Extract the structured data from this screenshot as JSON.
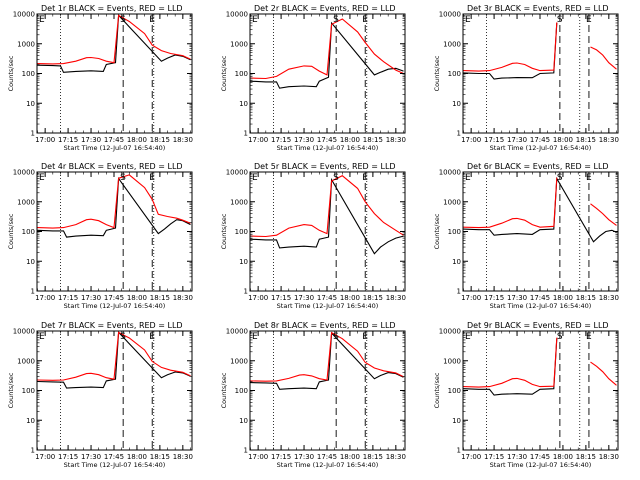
{
  "chart_data": [
    {
      "type": "line",
      "title": "Det 1r BLACK = Events, RED = LLD",
      "xlabel": "Start Time (12-Jul-07 16:54:40)",
      "ylabel": "Counts/sec",
      "yscale": "log",
      "ylim": [
        1,
        10000
      ],
      "xlim": [
        "16:54:40",
        "18:36:00"
      ],
      "x_ticks": [
        "17:00",
        "17:15",
        "17:30",
        "17:45",
        "18:00",
        "18:15",
        "18:30"
      ],
      "y_ticks": [
        "1",
        "10",
        "100",
        "1000",
        "10000"
      ],
      "markers": [
        {
          "label": "S",
          "x": "17:51"
        },
        {
          "label": "E",
          "x": "18:10"
        }
      ],
      "series": [
        {
          "color": "#000000",
          "x": [
            "16:55",
            "17:05",
            "17:10",
            "17:12",
            "17:20",
            "17:30",
            "17:38",
            "17:40",
            "17:46",
            "17:48",
            "18:16",
            "18:20",
            "18:25",
            "18:30",
            "18:35"
          ],
          "y": [
            190,
            185,
            180,
            110,
            118,
            123,
            118,
            200,
            230,
            9000,
            260,
            330,
            420,
            380,
            290
          ]
        },
        {
          "color": "#ff0000",
          "x": [
            "16:55",
            "17:05",
            "17:12",
            "17:20",
            "17:27",
            "17:30",
            "17:35",
            "17:40",
            "17:45",
            "17:48",
            "17:55",
            "18:05",
            "18:10",
            "18:16",
            "18:22",
            "18:30",
            "18:35"
          ],
          "y": [
            215,
            210,
            215,
            260,
            340,
            345,
            320,
            260,
            230,
            9000,
            5600,
            2200,
            900,
            590,
            470,
            400,
            300
          ]
        }
      ]
    },
    {
      "type": "line",
      "title": "Det 2r BLACK = Events, RED = LLD",
      "xlabel": "Start Time (12-Jul-07 16:54:40)",
      "ylabel": "Counts/sec",
      "yscale": "log",
      "ylim": [
        1,
        10000
      ],
      "xlim": [
        "16:54:40",
        "18:36:00"
      ],
      "x_ticks": [
        "17:00",
        "17:15",
        "17:30",
        "17:45",
        "18:00",
        "18:15",
        "18:30"
      ],
      "y_ticks": [
        "1",
        "10",
        "100",
        "1000",
        "10000"
      ],
      "markers": [
        {
          "label": "S",
          "x": "17:51"
        },
        {
          "label": "E",
          "x": "18:10"
        }
      ],
      "series": [
        {
          "color": "#000000",
          "x": [
            "16:55",
            "17:05",
            "17:12",
            "17:14",
            "17:20",
            "17:30",
            "17:38",
            "17:40",
            "17:46",
            "17:48",
            "18:16",
            "18:20",
            "18:25",
            "18:30",
            "18:35"
          ],
          "y": [
            55,
            52,
            52,
            32,
            36,
            38,
            36,
            55,
            75,
            5000,
            90,
            110,
            140,
            150,
            120
          ]
        },
        {
          "color": "#ff0000",
          "x": [
            "16:55",
            "17:05",
            "17:12",
            "17:20",
            "17:30",
            "17:35",
            "17:40",
            "17:45",
            "17:48",
            "17:55",
            "18:05",
            "18:10",
            "18:16",
            "18:22",
            "18:30",
            "18:35"
          ],
          "y": [
            70,
            68,
            80,
            140,
            180,
            175,
            120,
            90,
            4500,
            6800,
            2500,
            1100,
            450,
            250,
            130,
            100
          ]
        }
      ]
    },
    {
      "type": "line",
      "title": "Det 3r BLACK = Events, RED = LLD",
      "xlabel": "Start Time (12-Jul-07 16:54:40)",
      "ylabel": "Counts/sec",
      "yscale": "log",
      "ylim": [
        1,
        10000
      ],
      "xlim": [
        "16:54:40",
        "18:36:00"
      ],
      "x_ticks": [
        "17:00",
        "17:15",
        "17:30",
        "17:45",
        "18:00",
        "18:15",
        "18:30"
      ],
      "y_ticks": [
        "1",
        "10",
        "100",
        "1000",
        "10000"
      ],
      "markers": [
        {
          "label": "S",
          "x": "17:58"
        },
        {
          "label": "E",
          "x": "18:17"
        }
      ],
      "series": [
        {
          "color": "#000000",
          "x": [
            "16:55",
            "17:05",
            "17:12",
            "17:15",
            "17:20",
            "17:30",
            "17:40",
            "17:45",
            "17:54",
            "17:56"
          ],
          "y": [
            105,
            100,
            100,
            65,
            70,
            73,
            72,
            100,
            105,
            5000
          ]
        },
        {
          "color": "#ff0000",
          "x": [
            "16:55",
            "17:05",
            "17:12",
            "17:20",
            "17:27",
            "17:30",
            "17:35",
            "17:40",
            "17:45",
            "17:54",
            "17:56"
          ],
          "y": [
            125,
            120,
            125,
            160,
            220,
            225,
            200,
            150,
            125,
            130,
            5200
          ]
        },
        {
          "color": "#ff0000",
          "x": [
            "18:18",
            "18:22",
            "18:26",
            "18:30",
            "18:35"
          ],
          "y": [
            780,
            620,
            420,
            230,
            140
          ]
        }
      ]
    },
    {
      "type": "line",
      "title": "Det 4r BLACK = Events, RED = LLD",
      "xlabel": "Start Time (12-Jul-07 16:54:40)",
      "ylabel": "Counts/sec",
      "yscale": "log",
      "ylim": [
        1,
        10000
      ],
      "xlim": [
        "16:54:40",
        "18:36:00"
      ],
      "x_ticks": [
        "17:00",
        "17:15",
        "17:30",
        "17:45",
        "18:00",
        "18:15",
        "18:30"
      ],
      "y_ticks": [
        "1",
        "10",
        "100",
        "1000",
        "10000"
      ],
      "markers": [
        {
          "label": "S",
          "x": "17:51"
        },
        {
          "label": "E",
          "x": "18:10"
        }
      ],
      "series": [
        {
          "color": "#000000",
          "x": [
            "16:55",
            "17:05",
            "17:12",
            "17:14",
            "17:20",
            "17:30",
            "17:38",
            "17:40",
            "17:46",
            "17:48",
            "18:14",
            "18:18",
            "18:22",
            "18:26",
            "18:30",
            "18:35"
          ],
          "y": [
            110,
            105,
            105,
            65,
            70,
            75,
            72,
            110,
            130,
            6000,
            85,
            120,
            180,
            250,
            230,
            170
          ]
        },
        {
          "color": "#ff0000",
          "x": [
            "16:55",
            "17:05",
            "17:12",
            "17:20",
            "17:27",
            "17:30",
            "17:35",
            "17:40",
            "17:45",
            "17:48",
            "17:55",
            "18:05",
            "18:10",
            "18:14",
            "18:20",
            "18:26",
            "18:30",
            "18:35"
          ],
          "y": [
            135,
            130,
            135,
            170,
            250,
            260,
            230,
            170,
            135,
            6200,
            8000,
            3000,
            1200,
            380,
            320,
            280,
            240,
            190
          ]
        }
      ]
    },
    {
      "type": "line",
      "title": "Det 5r BLACK = Events, RED = LLD",
      "xlabel": "Start Time (12-Jul-07 16:54:40)",
      "ylabel": "Counts/sec",
      "yscale": "log",
      "ylim": [
        1,
        10000
      ],
      "xlim": [
        "16:54:40",
        "18:36:00"
      ],
      "x_ticks": [
        "17:00",
        "17:15",
        "17:30",
        "17:45",
        "18:00",
        "18:15",
        "18:30"
      ],
      "y_ticks": [
        "1",
        "10",
        "100",
        "1000",
        "10000"
      ],
      "markers": [
        {
          "label": "S",
          "x": "17:51"
        },
        {
          "label": "E",
          "x": "18:10"
        }
      ],
      "series": [
        {
          "color": "#000000",
          "x": [
            "16:55",
            "17:05",
            "17:12",
            "17:14",
            "17:20",
            "17:30",
            "17:38",
            "17:40",
            "17:46",
            "17:48",
            "18:16",
            "18:20",
            "18:25",
            "18:30",
            "18:35"
          ],
          "y": [
            55,
            52,
            52,
            28,
            30,
            32,
            30,
            55,
            65,
            5500,
            18,
            30,
            45,
            60,
            70
          ]
        },
        {
          "color": "#ff0000",
          "x": [
            "16:55",
            "17:05",
            "17:12",
            "17:20",
            "17:30",
            "17:35",
            "17:40",
            "17:45",
            "17:48",
            "17:55",
            "18:05",
            "18:10",
            "18:16",
            "18:22",
            "18:30",
            "18:35"
          ],
          "y": [
            70,
            68,
            75,
            130,
            170,
            160,
            110,
            85,
            5000,
            7500,
            2800,
            1000,
            400,
            200,
            110,
            75
          ]
        }
      ]
    },
    {
      "type": "line",
      "title": "Det 6r BLACK = Events, RED = LLD",
      "xlabel": "Start Time (12-Jul-07 16:54:40)",
      "ylabel": "Counts/sec",
      "yscale": "log",
      "ylim": [
        1,
        10000
      ],
      "xlim": [
        "16:54:40",
        "18:36:00"
      ],
      "x_ticks": [
        "17:00",
        "17:15",
        "17:30",
        "17:45",
        "18:00",
        "18:15",
        "18:30"
      ],
      "y_ticks": [
        "1",
        "10",
        "100",
        "1000",
        "10000"
      ],
      "markers": [
        {
          "label": "S",
          "x": "17:58"
        },
        {
          "label": "E",
          "x": "18:17"
        }
      ],
      "series": [
        {
          "color": "#000000",
          "x": [
            "16:55",
            "17:05",
            "17:12",
            "17:15",
            "17:20",
            "17:30",
            "17:40",
            "17:45",
            "17:54",
            "17:56",
            "18:20",
            "18:24",
            "18:28",
            "18:32",
            "18:35"
          ],
          "y": [
            120,
            115,
            115,
            75,
            80,
            85,
            80,
            115,
            120,
            6000,
            45,
            70,
            100,
            110,
            95
          ]
        },
        {
          "color": "#ff0000",
          "x": [
            "16:55",
            "17:05",
            "17:12",
            "17:20",
            "17:27",
            "17:30",
            "17:35",
            "17:40",
            "17:45",
            "17:54",
            "17:56"
          ],
          "y": [
            140,
            135,
            140,
            190,
            270,
            275,
            240,
            170,
            140,
            150,
            6500
          ]
        },
        {
          "color": "#ff0000",
          "x": [
            "18:18",
            "18:22",
            "18:26",
            "18:30",
            "18:35"
          ],
          "y": [
            850,
            600,
            400,
            250,
            160
          ]
        }
      ]
    },
    {
      "type": "line",
      "title": "Det 7r BLACK = Events, RED = LLD",
      "xlabel": "Start Time (12-Jul-07 16:54:40)",
      "ylabel": "Counts/sec",
      "yscale": "log",
      "ylim": [
        1,
        10000
      ],
      "xlim": [
        "16:54:40",
        "18:36:00"
      ],
      "x_ticks": [
        "17:00",
        "17:15",
        "17:30",
        "17:45",
        "18:00",
        "18:15",
        "18:30"
      ],
      "y_ticks": [
        "1",
        "10",
        "100",
        "1000",
        "10000"
      ],
      "markers": [
        {
          "label": "S",
          "x": "17:51"
        },
        {
          "label": "E",
          "x": "18:10"
        }
      ],
      "series": [
        {
          "color": "#000000",
          "x": [
            "16:55",
            "17:05",
            "17:12",
            "17:14",
            "17:20",
            "17:30",
            "17:38",
            "17:40",
            "17:46",
            "17:48",
            "18:16",
            "18:20",
            "18:25",
            "18:30",
            "18:35"
          ],
          "y": [
            200,
            195,
            190,
            120,
            125,
            130,
            125,
            210,
            240,
            9000,
            270,
            340,
            420,
            390,
            300
          ]
        },
        {
          "color": "#ff0000",
          "x": [
            "16:55",
            "17:05",
            "17:12",
            "17:20",
            "17:27",
            "17:30",
            "17:35",
            "17:40",
            "17:45",
            "17:48",
            "17:55",
            "18:05",
            "18:10",
            "18:16",
            "18:22",
            "18:30",
            "18:35"
          ],
          "y": [
            225,
            220,
            225,
            280,
            370,
            380,
            340,
            270,
            240,
            9000,
            5800,
            2300,
            950,
            600,
            480,
            410,
            310
          ]
        }
      ]
    },
    {
      "type": "line",
      "title": "Det 8r BLACK = Events, RED = LLD",
      "xlabel": "Start Time (12-Jul-07 16:54:40)",
      "ylabel": "Counts/sec",
      "yscale": "log",
      "ylim": [
        1,
        10000
      ],
      "xlim": [
        "16:54:40",
        "18:36:00"
      ],
      "x_ticks": [
        "17:00",
        "17:15",
        "17:30",
        "17:45",
        "18:00",
        "18:15",
        "18:30"
      ],
      "y_ticks": [
        "1",
        "10",
        "100",
        "1000",
        "10000"
      ],
      "markers": [
        {
          "label": "S",
          "x": "17:51"
        },
        {
          "label": "E",
          "x": "18:10"
        }
      ],
      "series": [
        {
          "color": "#000000",
          "x": [
            "16:55",
            "17:05",
            "17:12",
            "17:14",
            "17:20",
            "17:30",
            "17:38",
            "17:40",
            "17:46",
            "17:48",
            "18:16",
            "18:20",
            "18:25",
            "18:30",
            "18:35"
          ],
          "y": [
            185,
            180,
            175,
            110,
            115,
            120,
            115,
            195,
            225,
            8500,
            250,
            320,
            400,
            370,
            280
          ]
        },
        {
          "color": "#ff0000",
          "x": [
            "16:55",
            "17:05",
            "17:12",
            "17:20",
            "17:27",
            "17:30",
            "17:35",
            "17:40",
            "17:45",
            "17:48",
            "17:55",
            "18:05",
            "18:10",
            "18:16",
            "18:22",
            "18:30",
            "18:35"
          ],
          "y": [
            210,
            205,
            210,
            255,
            330,
            340,
            310,
            250,
            225,
            8800,
            5500,
            2100,
            880,
            570,
            460,
            390,
            290
          ]
        }
      ]
    },
    {
      "type": "line",
      "title": "Det 9r BLACK = Events, RED = LLD",
      "xlabel": "Start Time (12-Jul-07 16:54:40)",
      "ylabel": "Counts/sec",
      "yscale": "log",
      "ylim": [
        1,
        10000
      ],
      "xlim": [
        "16:54:40",
        "18:36:00"
      ],
      "x_ticks": [
        "17:00",
        "17:15",
        "17:30",
        "17:45",
        "18:00",
        "18:15",
        "18:30"
      ],
      "y_ticks": [
        "1",
        "10",
        "100",
        "1000",
        "10000"
      ],
      "markers": [
        {
          "label": "S",
          "x": "17:58"
        },
        {
          "label": "E",
          "x": "18:17"
        }
      ],
      "series": [
        {
          "color": "#000000",
          "x": [
            "16:55",
            "17:05",
            "17:12",
            "17:15",
            "17:20",
            "17:30",
            "17:40",
            "17:45",
            "17:54",
            "17:56"
          ],
          "y": [
            115,
            110,
            110,
            70,
            75,
            78,
            75,
            110,
            115,
            5500
          ]
        },
        {
          "color": "#ff0000",
          "x": [
            "16:55",
            "17:05",
            "17:12",
            "17:20",
            "17:27",
            "17:30",
            "17:35",
            "17:40",
            "17:45",
            "17:54",
            "17:56"
          ],
          "y": [
            135,
            130,
            135,
            175,
            250,
            255,
            220,
            160,
            135,
            140,
            6000
          ]
        },
        {
          "color": "#ff0000",
          "x": [
            "18:18",
            "18:22",
            "18:26",
            "18:30",
            "18:35"
          ],
          "y": [
            900,
            650,
            430,
            250,
            150
          ]
        }
      ]
    }
  ]
}
